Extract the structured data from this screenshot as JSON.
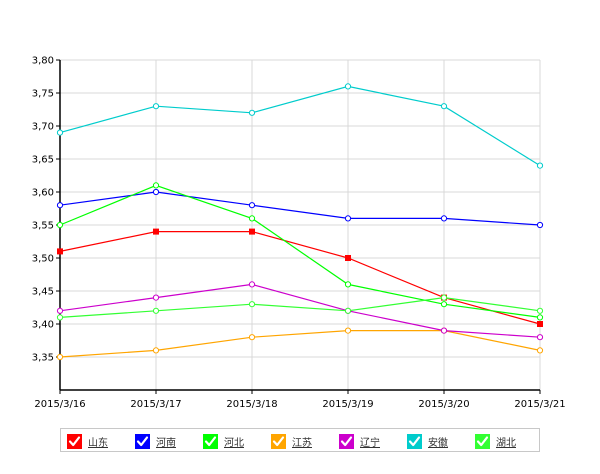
{
  "chart_data": {
    "type": "line",
    "title": "",
    "xlabel": "",
    "ylabel": "",
    "categories": [
      "2015/3/16",
      "2015/3/17",
      "2015/3/18",
      "2015/3/19",
      "2015/3/20",
      "2015/3/21"
    ],
    "ylim": [
      3.3,
      3.8
    ],
    "yticks": [
      "3,35",
      "3,40",
      "3,45",
      "3,50",
      "3,55",
      "3,60",
      "3,65",
      "3,70",
      "3,75",
      "3,80"
    ],
    "ytick_values": [
      3.35,
      3.4,
      3.45,
      3.5,
      3.55,
      3.6,
      3.65,
      3.7,
      3.75,
      3.8
    ],
    "grid": true,
    "legend_position": "bottom",
    "series": [
      {
        "name": "山东",
        "color": "#ff0000",
        "marker": "square",
        "values": [
          3.51,
          3.54,
          3.54,
          3.5,
          3.44,
          3.4
        ]
      },
      {
        "name": "河南",
        "color": "#0000ff",
        "marker": "circle",
        "values": [
          3.58,
          3.6,
          3.58,
          3.56,
          3.56,
          3.55
        ]
      },
      {
        "name": "河北",
        "color": "#00ff00",
        "marker": "circle",
        "values": [
          3.55,
          3.61,
          3.56,
          3.46,
          3.43,
          3.41
        ]
      },
      {
        "name": "江苏",
        "color": "#ffa500",
        "marker": "circle",
        "values": [
          3.35,
          3.36,
          3.38,
          3.39,
          3.39,
          3.36
        ]
      },
      {
        "name": "辽宁",
        "color": "#cc00cc",
        "marker": "circle",
        "values": [
          3.42,
          3.44,
          3.46,
          3.42,
          3.39,
          3.38
        ]
      },
      {
        "name": "安徽",
        "color": "#00cccc",
        "marker": "circle",
        "values": [
          3.69,
          3.73,
          3.72,
          3.76,
          3.73,
          3.64
        ]
      },
      {
        "name": "湖北",
        "color": "#33ff33",
        "marker": "circle",
        "values": [
          3.41,
          3.42,
          3.43,
          3.42,
          3.44,
          3.42
        ]
      }
    ]
  }
}
